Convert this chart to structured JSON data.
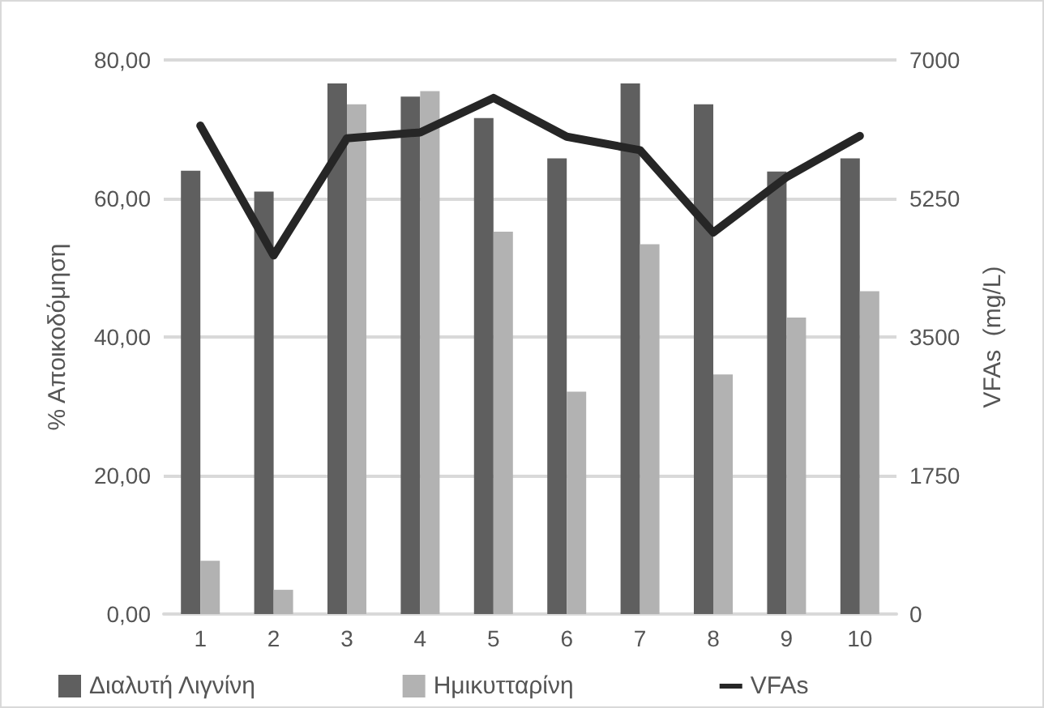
{
  "chart_data": {
    "type": "bar",
    "ylabel": "% Αποικοδόμηση",
    "y2label": "VFAs  (mg/L)",
    "categories": [
      "1",
      "2",
      "3",
      "4",
      "5",
      "6",
      "7",
      "8",
      "9",
      "10"
    ],
    "series": [
      {
        "name": "Διαλυτή Λιγνίνη",
        "color": "#5f5f5f",
        "values": [
          64,
          61,
          76.6,
          74.7,
          71.6,
          65.8,
          76.6,
          73.6,
          63.9,
          65.8
        ]
      },
      {
        "name": "Ημικυτταρίνη",
        "color": "#b2b2b2",
        "values": [
          7.7,
          3.5,
          73.6,
          75.5,
          55.2,
          32.1,
          53.4,
          34.6,
          42.8,
          46.6
        ]
      },
      {
        "name": "VFAs",
        "type": "line",
        "axis": "y2",
        "color": "#262626",
        "values": [
          6170,
          4530,
          6010,
          6085,
          6520,
          6030,
          5860,
          4820,
          5520,
          6040
        ]
      }
    ],
    "ylim": [
      0,
      80
    ],
    "yticks": [
      {
        "value": 0,
        "label": "0,00"
      },
      {
        "value": 20,
        "label": "20,00"
      },
      {
        "value": 40,
        "label": "40,00"
      },
      {
        "value": 60,
        "label": "60,00"
      },
      {
        "value": 80,
        "label": "80,00"
      }
    ],
    "y2lim": [
      0,
      7000
    ],
    "y2ticks": [
      0,
      1750,
      3500,
      5250,
      7000
    ],
    "grid": "y",
    "legend": "bottom",
    "marker": "none"
  }
}
